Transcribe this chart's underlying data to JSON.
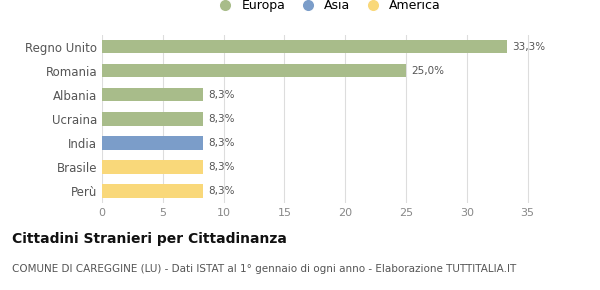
{
  "categories": [
    "Perù",
    "Brasile",
    "India",
    "Ucraina",
    "Albania",
    "Romania",
    "Regno Unito"
  ],
  "values": [
    8.3,
    8.3,
    8.3,
    8.3,
    8.3,
    25.0,
    33.3
  ],
  "colors": [
    "#f9d87a",
    "#f9d87a",
    "#7b9dc9",
    "#a8bc8a",
    "#a8bc8a",
    "#a8bc8a",
    "#a8bc8a"
  ],
  "labels": [
    "8,3%",
    "8,3%",
    "8,3%",
    "8,3%",
    "8,3%",
    "25,0%",
    "33,3%"
  ],
  "legend": [
    {
      "label": "Europa",
      "color": "#a8bc8a"
    },
    {
      "label": "Asia",
      "color": "#7b9dc9"
    },
    {
      "label": "America",
      "color": "#f9d87a"
    }
  ],
  "xlim": [
    0,
    37
  ],
  "xticks": [
    0,
    5,
    10,
    15,
    20,
    25,
    30,
    35
  ],
  "title": "Cittadini Stranieri per Cittadinanza",
  "subtitle": "COMUNE DI CAREGGINE (LU) - Dati ISTAT al 1° gennaio di ogni anno - Elaborazione TUTTITALIA.IT",
  "title_fontsize": 10,
  "subtitle_fontsize": 7.5,
  "bar_height": 0.55,
  "background_color": "#ffffff",
  "grid_color": "#dddddd",
  "label_fontsize": 7.5,
  "tick_fontsize": 8,
  "ytick_fontsize": 8.5
}
